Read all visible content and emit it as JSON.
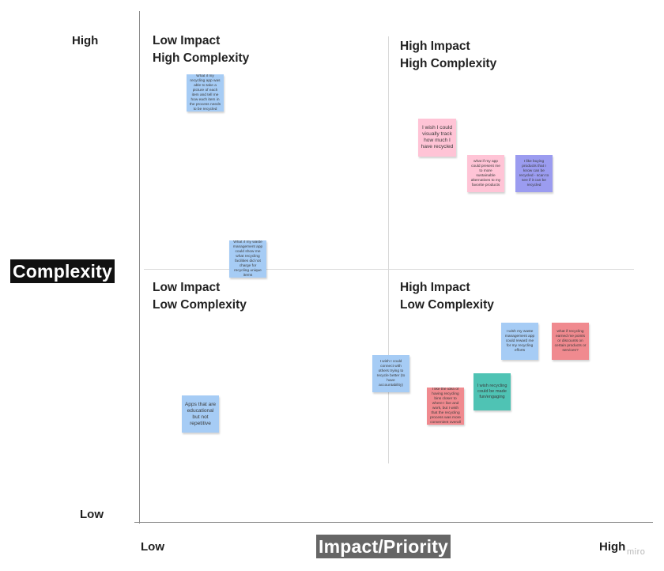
{
  "axes": {
    "y_title": "Complexity",
    "x_title": "Impact/Priority",
    "y_high": "High",
    "y_low": "Low",
    "x_low": "Low",
    "x_high": "High"
  },
  "quadrants": {
    "top_left": "Low Impact\nHigh Complexity",
    "top_right": "High Impact\nHigh Complexity",
    "bottom_left": "Low Impact\nLow Complexity",
    "bottom_right": "High Impact\nLow Complexity"
  },
  "notes": {
    "n1": "What if my recycling app was able to take a picture of each item and tell me how each item in the process needs to be recycled",
    "n2": "I wish I could visually track how much I have recycled",
    "n3": "what if my app could present me to more sustainable alternatives to my favorite products",
    "n4": "I like buying products that I know can be recycled - scan to see if it can be recycled",
    "n5": "What if my waste management app could show me what recycling facilities did not charge for recycling unique items",
    "n6": "I wish my waste management app could reward me for my recycling efforts",
    "n7": "what if recycling earned me points or discounts on certain products or services?",
    "n8": "I wish I could connect with others trying to recycle better (to have accountability)",
    "n9": "I wish recycling could be made fun/engaging",
    "n10": "I like the idea of having recycling bins closer to where I live and work, but I wish that the recycling process was more convenient overall",
    "n11": "Apps that are educational but not repetitive"
  },
  "colors": {
    "blue": "#a6ccf5",
    "pink": "#ffc4d6",
    "red": "#f08a8f",
    "purple": "#9b9cf0",
    "teal": "#4fc3b4"
  },
  "watermark": "miro"
}
